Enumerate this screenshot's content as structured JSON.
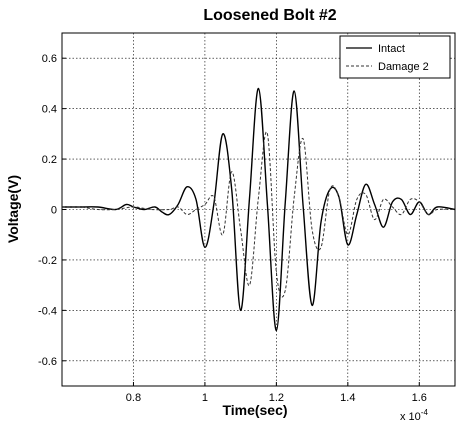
{
  "chart_data": {
    "type": "line",
    "title": "Loosened Bolt #2",
    "xlabel": "Time(sec)",
    "ylabel": "Voltage(V)",
    "x_multiplier": "x 10",
    "x_exponent": "-4",
    "xlim": [
      0.6,
      1.7
    ],
    "ylim": [
      -0.7,
      0.7
    ],
    "xticks": [
      "0.8",
      "1",
      "1.2",
      "1.4",
      "1.6"
    ],
    "xtick_values": [
      0.8,
      1.0,
      1.2,
      1.4,
      1.6
    ],
    "yticks": [
      "-0.6",
      "-0.4",
      "-0.2",
      "0",
      "0.2",
      "0.4",
      "0.6"
    ],
    "ytick_values": [
      -0.6,
      -0.4,
      -0.2,
      0,
      0.2,
      0.4,
      0.6
    ],
    "grid": true,
    "legend_position": "top-right",
    "series": [
      {
        "name": "Intact",
        "style": "solid",
        "color": "#000000",
        "x": [
          0.6,
          0.65,
          0.7,
          0.75,
          0.78,
          0.8,
          0.83,
          0.86,
          0.88,
          0.9,
          0.925,
          0.95,
          0.975,
          1.0,
          1.025,
          1.05,
          1.075,
          1.1,
          1.125,
          1.15,
          1.175,
          1.2,
          1.225,
          1.25,
          1.275,
          1.3,
          1.325,
          1.35,
          1.375,
          1.4,
          1.425,
          1.45,
          1.475,
          1.5,
          1.525,
          1.55,
          1.575,
          1.6,
          1.625,
          1.65,
          1.7
        ],
        "y": [
          0.01,
          0.01,
          0.01,
          0.0,
          0.02,
          0.01,
          0.0,
          0.01,
          -0.01,
          -0.02,
          0.02,
          0.09,
          0.04,
          -0.15,
          0.02,
          0.3,
          0.08,
          -0.4,
          0.05,
          0.48,
          0.02,
          -0.48,
          0.03,
          0.47,
          0.01,
          -0.38,
          -0.05,
          0.08,
          0.05,
          -0.14,
          -0.02,
          0.1,
          0.02,
          -0.07,
          0.03,
          0.04,
          -0.02,
          0.03,
          -0.02,
          0.01,
          0.0
        ]
      },
      {
        "name": "Damage 2",
        "style": "dashed",
        "color": "#333333",
        "x": [
          0.6,
          0.65,
          0.7,
          0.75,
          0.8,
          0.85,
          0.9,
          0.925,
          0.95,
          0.975,
          1.0,
          1.025,
          1.05,
          1.075,
          1.1,
          1.125,
          1.15,
          1.175,
          1.2,
          1.225,
          1.25,
          1.275,
          1.3,
          1.325,
          1.35,
          1.375,
          1.4,
          1.425,
          1.45,
          1.475,
          1.5,
          1.525,
          1.55,
          1.575,
          1.6,
          1.625,
          1.65,
          1.7
        ],
        "y": [
          0.01,
          0.01,
          0.0,
          0.0,
          0.01,
          0.0,
          0.0,
          0.01,
          -0.02,
          0.0,
          0.02,
          0.05,
          -0.1,
          0.15,
          -0.08,
          -0.3,
          0.05,
          0.3,
          -0.25,
          -0.32,
          0.05,
          0.28,
          -0.08,
          -0.15,
          0.08,
          0.05,
          -0.1,
          0.04,
          0.06,
          -0.04,
          0.04,
          0.01,
          -0.02,
          0.04,
          0.03,
          -0.02,
          0.0,
          0.0
        ]
      }
    ]
  }
}
